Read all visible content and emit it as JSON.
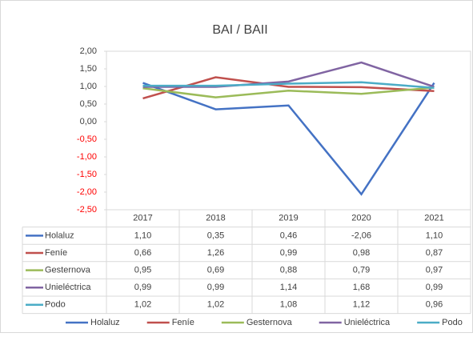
{
  "chart_data": {
    "type": "line",
    "title": "BAI / BAII",
    "categories": [
      "2017",
      "2018",
      "2019",
      "2020",
      "2021"
    ],
    "series": [
      {
        "name": "Holaluz",
        "color": "#4472c4",
        "values": [
          1.1,
          0.35,
          0.46,
          -2.06,
          1.1
        ],
        "value_labels": [
          "1,10",
          "0,35",
          "0,46",
          "-2,06",
          "1,10"
        ]
      },
      {
        "name": "Feníe",
        "color": "#c0504d",
        "values": [
          0.66,
          1.26,
          0.99,
          0.98,
          0.87
        ],
        "value_labels": [
          "0,66",
          "1,26",
          "0,99",
          "0,98",
          "0,87"
        ]
      },
      {
        "name": "Gesternova",
        "color": "#9bbb59",
        "values": [
          0.95,
          0.69,
          0.88,
          0.79,
          0.97
        ],
        "value_labels": [
          "0,95",
          "0,69",
          "0,88",
          "0,79",
          "0,97"
        ]
      },
      {
        "name": "Unieléctrica",
        "color": "#8064a2",
        "values": [
          0.99,
          0.99,
          1.14,
          1.68,
          0.99
        ],
        "value_labels": [
          "0,99",
          "0,99",
          "1,14",
          "1,68",
          "0,99"
        ]
      },
      {
        "name": "Podo",
        "color": "#4bacc6",
        "values": [
          1.02,
          1.02,
          1.08,
          1.12,
          0.96
        ],
        "value_labels": [
          "1,02",
          "1,02",
          "1,08",
          "1,12",
          "0,96"
        ]
      }
    ],
    "ylim": [
      -2.5,
      2.0
    ],
    "yticks": [
      {
        "value": 2,
        "label": "2,00"
      },
      {
        "value": 1.5,
        "label": "1,50"
      },
      {
        "value": 1,
        "label": "1,00"
      },
      {
        "value": 0.5,
        "label": "0,50"
      },
      {
        "value": 0,
        "label": "0,00"
      },
      {
        "value": -0.5,
        "label": "-0,50"
      },
      {
        "value": -1,
        "label": "-1,00"
      },
      {
        "value": -1.5,
        "label": "-1,50"
      },
      {
        "value": -2,
        "label": "-2,00"
      },
      {
        "value": -2.5,
        "label": "-2,50"
      }
    ],
    "negative_tick_color": "#ff0000",
    "legend": "bottom",
    "grid": false
  }
}
